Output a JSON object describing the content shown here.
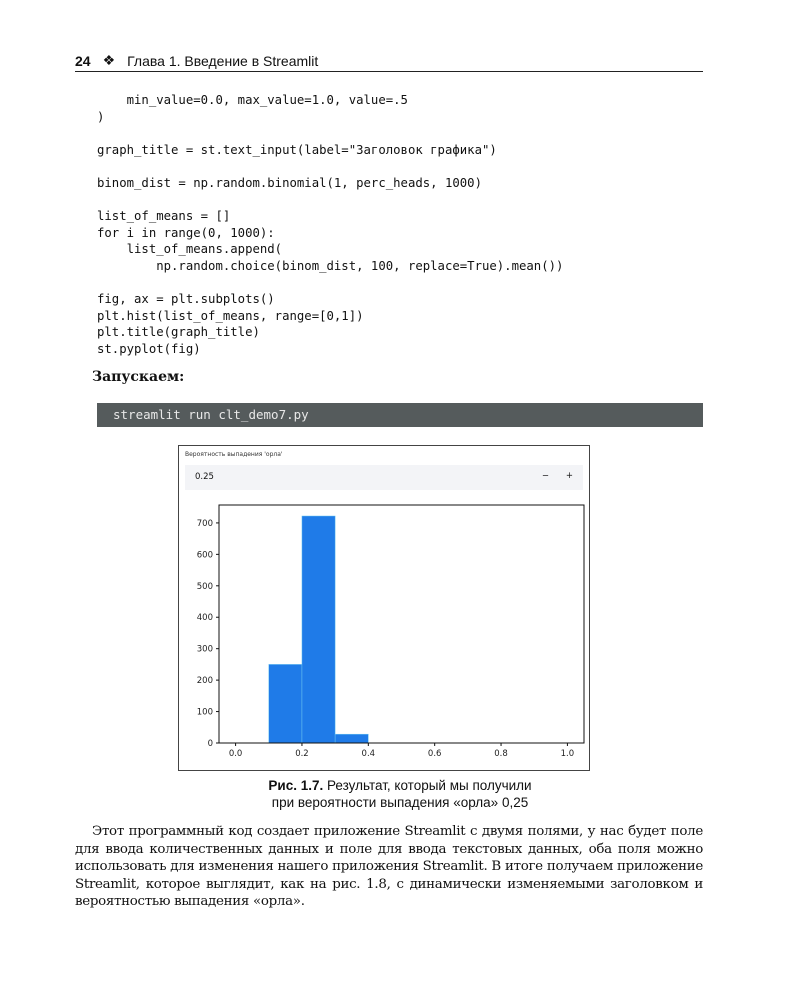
{
  "header": {
    "page_number": "24",
    "separator": "❖",
    "chapter": "Глава 1. Введение в Streamlit"
  },
  "code": "    min_value=0.0, max_value=1.0, value=.5\n)\n\ngraph_title = st.text_input(label=\"Заголовок графика\")\n\nbinom_dist = np.random.binomial(1, perc_heads, 1000)\n\nlist_of_means = []\nfor i in range(0, 1000):\n    list_of_means.append(\n        np.random.choice(binom_dist, 100, replace=True).mean())\n\nfig, ax = plt.subplots()\nplt.hist(list_of_means, range=[0,1])\nplt.title(graph_title)\nst.pyplot(fig)",
  "lead": "Запускаем:",
  "command": "streamlit run clt_demo7.py",
  "figure": {
    "input_label": "Вероятность выпадения 'орла'",
    "input_value": "0.25",
    "minus": "−",
    "plus": "+",
    "bar_color": "#1f7be8"
  },
  "chart_data": {
    "type": "bar",
    "bins": [
      [
        0.1,
        0.2
      ],
      [
        0.2,
        0.3
      ],
      [
        0.3,
        0.4
      ]
    ],
    "values": [
      250,
      722,
      28
    ],
    "xlim": [
      -0.05,
      1.05
    ],
    "ylim": [
      0,
      757
    ],
    "xticks": [
      "0.0",
      "0.2",
      "0.4",
      "0.6",
      "0.8",
      "1.0"
    ],
    "yticks": [
      "0",
      "100",
      "200",
      "300",
      "400",
      "500",
      "600",
      "700"
    ]
  },
  "caption": {
    "label": "Рис. 1.7.",
    "line1": " Результат, который мы получили",
    "line2": "при вероятности выпадения «орла» 0,25"
  },
  "paragraph": "Этот программный код создает приложение Streamlit с двумя полями, у нас будет поле для ввода количественных данных и поле для ввода текстовых данных, оба поля можно использовать для изменения нашего приложения Streamlit. В итоге получаем приложение Streamlit, которое выглядит, как на рис. 1.8, с динамически изменяемыми заголовком и вероятностью выпадения «орла»."
}
